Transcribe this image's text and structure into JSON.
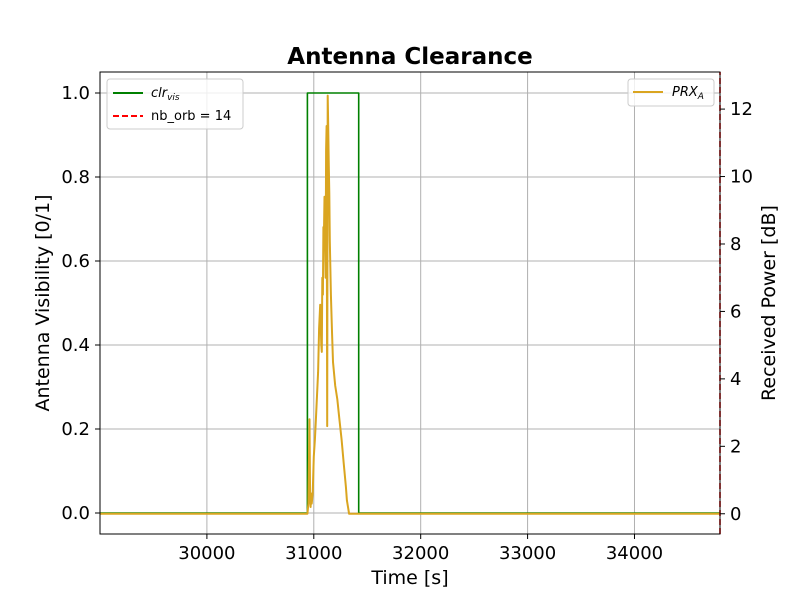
{
  "chart_data": {
    "type": "line",
    "title": "Antenna Clearance",
    "xlabel": "Time [s]",
    "ylabel_left": "Antenna Visibility [0/1]",
    "ylabel_right": "Received Power [dB]",
    "xlim": [
      29000,
      34800
    ],
    "ylim_left": [
      -0.05,
      1.05
    ],
    "ylim_right": [
      -0.6,
      13.1
    ],
    "x_ticks": [
      30000,
      31000,
      32000,
      33000,
      34000
    ],
    "y_ticks_left": [
      0.0,
      0.2,
      0.4,
      0.6,
      0.8,
      1.0
    ],
    "y_ticks_right": [
      0,
      2,
      4,
      6,
      8,
      10,
      12
    ],
    "grid": true,
    "legend_left": {
      "placement": "top-left",
      "entries": [
        {
          "label_main": "clr",
          "label_sub": "vis",
          "color": "#008000",
          "style": "solid"
        },
        {
          "label_main": "nb_orb = 14",
          "label_sub": "",
          "color": "#ff0000",
          "style": "dashed"
        }
      ]
    },
    "legend_right": {
      "placement": "top-right",
      "entries": [
        {
          "label_main": "PRX",
          "label_sub": "A",
          "color": "#DAA520",
          "style": "solid"
        }
      ]
    },
    "series": [
      {
        "name": "clr_vis",
        "axis": "left",
        "color": "#008000",
        "x": [
          29000,
          30940,
          30940,
          31420,
          31420,
          34800
        ],
        "y": [
          0,
          0,
          1,
          1,
          0,
          0
        ]
      },
      {
        "name": "PRX_A",
        "axis": "right",
        "color": "#DAA520",
        "x": [
          29000,
          30940,
          30950,
          30960,
          30965,
          30970,
          30975,
          30980,
          30990,
          31000,
          31010,
          31020,
          31030,
          31040,
          31050,
          31060,
          31070,
          31075,
          31080,
          31085,
          31090,
          31095,
          31100,
          31105,
          31110,
          31115,
          31120,
          31125,
          31130,
          31135,
          31140,
          31145,
          31150,
          31160,
          31170,
          31180,
          31200,
          31220,
          31240,
          31260,
          31280,
          31300,
          31310,
          31320,
          31330,
          31340,
          34800
        ],
        "y": [
          0,
          0,
          0.3,
          2.8,
          0.5,
          0.2,
          0.6,
          0.3,
          0.6,
          1.7,
          2.2,
          2.8,
          3.5,
          4.2,
          5.5,
          6.2,
          5.0,
          4.8,
          7.0,
          6.5,
          8.5,
          8.2,
          9.4,
          8.3,
          7.0,
          10.8,
          11.5,
          2.6,
          12.4,
          11.5,
          10.3,
          9.5,
          8.1,
          6.5,
          5.4,
          4.5,
          3.8,
          3.4,
          2.8,
          2.2,
          1.5,
          0.8,
          0.4,
          0.2,
          0,
          0,
          0
        ]
      },
      {
        "name": "nb_orb = 14",
        "axis": "left",
        "color": "#ff0000",
        "x": [
          34800,
          34800
        ],
        "y": [
          -0.05,
          1.05
        ]
      }
    ]
  }
}
